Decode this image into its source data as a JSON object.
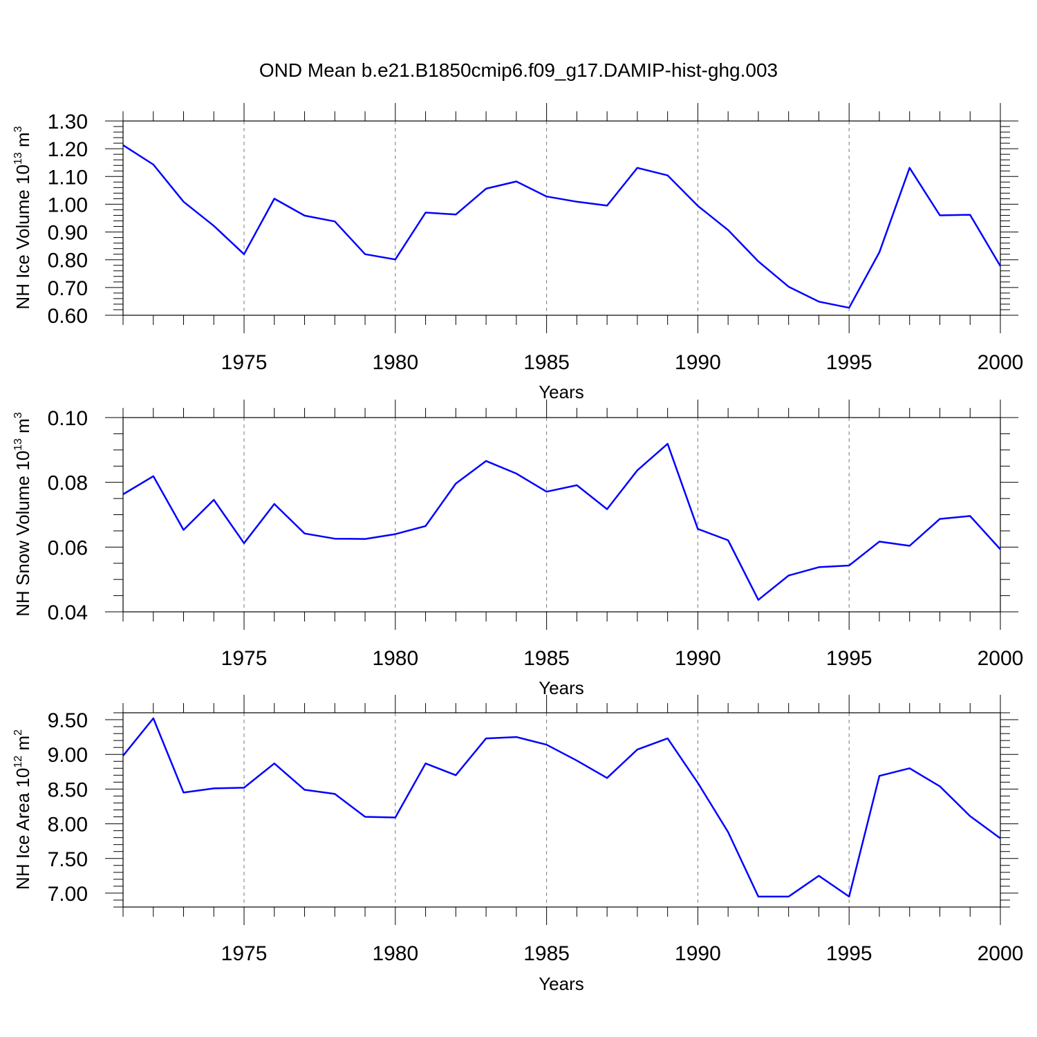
{
  "figure": {
    "title": "OND Mean b.e21.B1850cmip6.f09_g17.DAMIP-hist-ghg.003",
    "line_color": "#0000ff"
  },
  "chart_data": [
    {
      "type": "line",
      "ylabel": "NH Ice Volume 10",
      "ylabel_exp": "13",
      "ylabel_unit": " m",
      "ylabel_unit_exp": "3",
      "xlabel": "Years",
      "xlim": [
        1971,
        2000
      ],
      "ylim": [
        0.6,
        1.3
      ],
      "x_ticks": [
        1975,
        1980,
        1985,
        1990,
        1995,
        2000
      ],
      "y_ticks": [
        "0.60",
        "0.70",
        "0.80",
        "0.90",
        "1.00",
        "1.10",
        "1.20",
        "1.30"
      ],
      "grid": "vertical dashed at major x ticks",
      "series": [
        {
          "x": [
            1971,
            1972,
            1973,
            1974,
            1975,
            1976,
            1977,
            1978,
            1979,
            1980,
            1981,
            1982,
            1983,
            1984,
            1985,
            1986,
            1987,
            1988,
            1989,
            1990,
            1991,
            1992,
            1993,
            1994,
            1995,
            1996,
            1997,
            1998,
            1999,
            2000
          ],
          "values": [
            1.213,
            1.143,
            1.009,
            0.922,
            0.82,
            1.02,
            0.959,
            0.938,
            0.82,
            0.801,
            0.97,
            0.963,
            1.056,
            1.082,
            1.028,
            1.009,
            0.995,
            1.131,
            1.104,
            0.994,
            0.907,
            0.794,
            0.703,
            0.649,
            0.627,
            0.827,
            1.131,
            0.96,
            0.962,
            0.777
          ]
        }
      ]
    },
    {
      "type": "line",
      "ylabel": "NH Snow Volume 10",
      "ylabel_exp": "13",
      "ylabel_unit": " m",
      "ylabel_unit_exp": "3",
      "xlabel": "Years",
      "xlim": [
        1971,
        2000
      ],
      "ylim": [
        0.04,
        0.1
      ],
      "x_ticks": [
        1975,
        1980,
        1985,
        1990,
        1995,
        2000
      ],
      "y_ticks": [
        "0.04",
        "0.06",
        "0.08",
        "0.10"
      ],
      "grid": "vertical dashed at major x ticks",
      "series": [
        {
          "x": [
            1971,
            1972,
            1973,
            1974,
            1975,
            1976,
            1977,
            1978,
            1979,
            1980,
            1981,
            1982,
            1983,
            1984,
            1985,
            1986,
            1987,
            1988,
            1989,
            1990,
            1991,
            1992,
            1993,
            1994,
            1995,
            1996,
            1997,
            1998,
            1999,
            2000
          ],
          "values": [
            0.0763,
            0.0819,
            0.0653,
            0.0746,
            0.0612,
            0.0733,
            0.0642,
            0.0626,
            0.0625,
            0.064,
            0.0665,
            0.0796,
            0.0866,
            0.0827,
            0.0771,
            0.0791,
            0.0717,
            0.0837,
            0.0919,
            0.0656,
            0.0621,
            0.0437,
            0.0512,
            0.0538,
            0.0543,
            0.0617,
            0.0604,
            0.0687,
            0.0696,
            0.0593
          ]
        }
      ]
    },
    {
      "type": "line",
      "ylabel": "NH Ice Area 10",
      "ylabel_exp": "12",
      "ylabel_unit": " m",
      "ylabel_unit_exp": "2",
      "xlabel": "Years",
      "xlim": [
        1971,
        2000
      ],
      "ylim": [
        6.8,
        9.6
      ],
      "x_ticks": [
        1975,
        1980,
        1985,
        1990,
        1995,
        2000
      ],
      "y_ticks": [
        "7.00",
        "7.50",
        "8.00",
        "8.50",
        "9.00",
        "9.50"
      ],
      "grid": "vertical dashed at major x ticks",
      "series": [
        {
          "x": [
            1971,
            1972,
            1973,
            1974,
            1975,
            1976,
            1977,
            1978,
            1979,
            1980,
            1981,
            1982,
            1983,
            1984,
            1985,
            1986,
            1987,
            1988,
            1989,
            1990,
            1991,
            1992,
            1993,
            1994,
            1995,
            1996,
            1997,
            1998,
            1999,
            2000
          ],
          "values": [
            8.98,
            9.52,
            8.45,
            8.51,
            8.52,
            8.87,
            8.49,
            8.43,
            8.1,
            8.09,
            8.87,
            8.7,
            9.23,
            9.25,
            9.14,
            8.91,
            8.66,
            9.07,
            9.23,
            8.59,
            7.88,
            6.95,
            6.95,
            7.25,
            6.95,
            8.69,
            8.8,
            8.54,
            8.11,
            7.79
          ]
        }
      ]
    }
  ]
}
